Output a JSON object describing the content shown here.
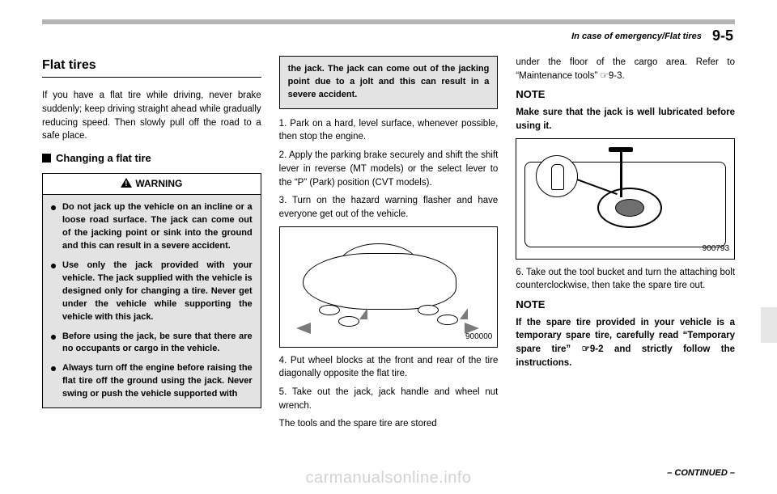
{
  "header": {
    "breadcrumb": "In case of emergency/Flat tires",
    "page_number": "9-5"
  },
  "col1": {
    "section_title": "Flat tires",
    "intro": "If you have a flat tire while driving, never brake suddenly; keep driving straight ahead while gradually reducing speed. Then slowly pull off the road to a safe place.",
    "subhead": "Changing a flat tire",
    "warning_label": "WARNING",
    "warnings": [
      "Do not jack up the vehicle on an incline or a loose road surface. The jack can come out of the jacking point or sink into the ground and this can result in a severe accident.",
      "Use only the jack provided with your vehicle. The jack supplied with the vehicle is designed only for changing a tire. Never get under the vehicle while support­ing the vehicle with this jack.",
      "Before using the jack, be sure that there are no occupants or cargo in the vehicle.",
      "Always turn off the engine before raising the flat tire off the ground using the jack. Never swing or push the vehicle supported with"
    ]
  },
  "col2": {
    "warn_cont": "the jack. The jack can come out of the jacking point due to a jolt and this can result in a severe accident.",
    "steps_a": [
      "1.  Park on a hard, level surface, when­ever possible, then stop the engine.",
      "2.  Apply the parking brake securely and shift the shift lever in reverse (MT models) or the select lever to the “P” (Park) position (CVT models).",
      "3.  Turn on the hazard warning flasher and have everyone get out of the vehicle."
    ],
    "fig1_label": "900000",
    "steps_b": [
      "4.  Put wheel blocks at the front and rear of the tire diagonally opposite the flat tire.",
      "5.  Take out the jack, jack handle and wheel nut wrench."
    ],
    "tools_line": "The tools and the spare tire are stored"
  },
  "col3": {
    "cont": "under the floor of the cargo area. Refer to “Maintenance tools” ☞9-3.",
    "note1_hd": "NOTE",
    "note1": "Make sure that the jack is well lubri­cated before using it.",
    "fig2_label": "900793",
    "step6": "6.  Take out the tool bucket and turn the attaching bolt counterclockwise, then take the spare tire out.",
    "note2_hd": "NOTE",
    "note2": "If the spare tire provided in your vehicle is a temporary spare tire, carefully read “Temporary spare tire” ☞9-2 and strictly follow the instructions."
  },
  "footer": "– CONTINUED –",
  "watermark": "carmanualsonline.info"
}
